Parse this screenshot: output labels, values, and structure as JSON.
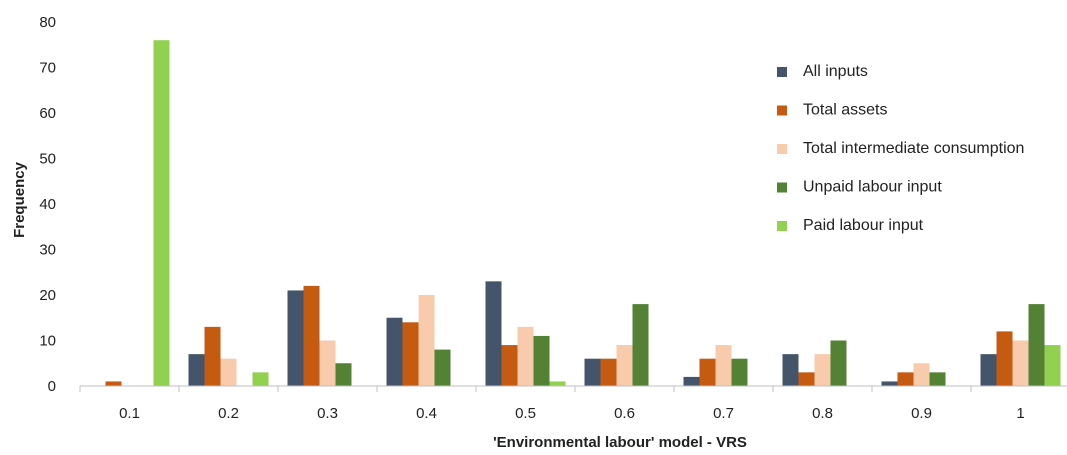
{
  "chart_data": {
    "type": "bar",
    "title": "",
    "xlabel": "'Environmental labour' model - VRS",
    "ylabel": "Frequency",
    "ylim": [
      0,
      80
    ],
    "yticks": [
      0,
      10,
      20,
      30,
      40,
      50,
      60,
      70,
      80
    ],
    "categories": [
      "0.1",
      "0.2",
      "0.3",
      "0.4",
      "0.5",
      "0.6",
      "0.7",
      "0.8",
      "0.9",
      "1"
    ],
    "legend_position": "right",
    "grid": false,
    "series": [
      {
        "name": "All inputs",
        "color": "#44546a",
        "values": [
          0,
          7,
          21,
          15,
          23,
          6,
          2,
          7,
          1,
          7
        ]
      },
      {
        "name": "Total assets",
        "color": "#c55a11",
        "values": [
          1,
          13,
          22,
          14,
          9,
          6,
          6,
          3,
          3,
          12
        ]
      },
      {
        "name": "Total intermediate consumption",
        "color": "#f8cbad",
        "values": [
          0,
          6,
          10,
          20,
          13,
          9,
          9,
          7,
          5,
          10
        ]
      },
      {
        "name": "Unpaid labour input",
        "color": "#548235",
        "values": [
          0,
          0,
          5,
          8,
          11,
          18,
          6,
          10,
          3,
          18
        ]
      },
      {
        "name": "Paid labour input",
        "color": "#92d050",
        "values": [
          76,
          3,
          0,
          0,
          1,
          0,
          0,
          0,
          0,
          9
        ]
      }
    ]
  }
}
